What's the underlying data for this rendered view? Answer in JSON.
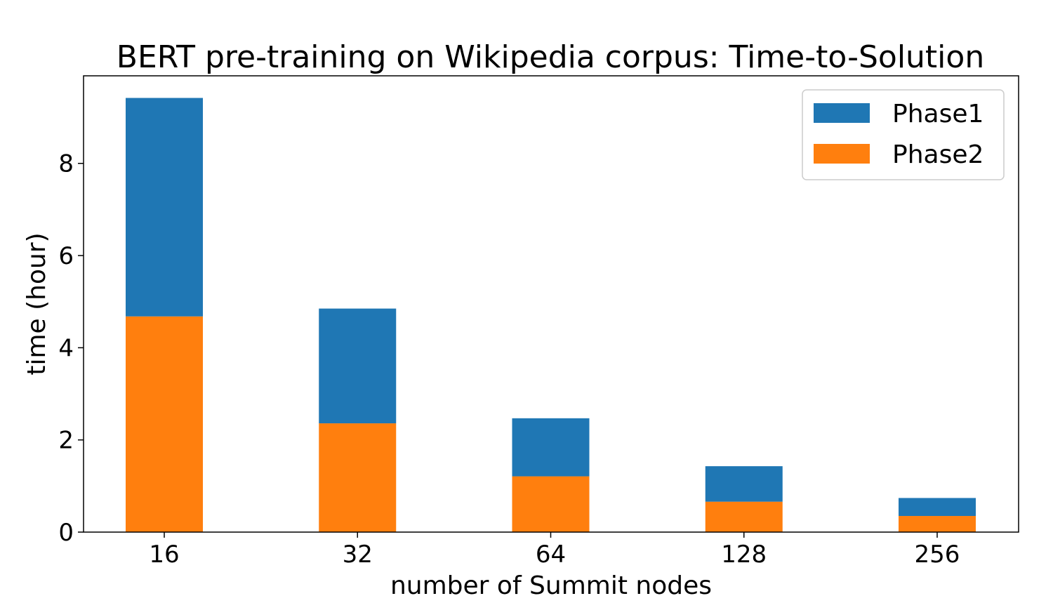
{
  "chart_data": {
    "type": "bar",
    "stacked": true,
    "title": "BERT pre-training on Wikipedia corpus: Time-to-Solution",
    "xlabel": "number of Summit nodes",
    "ylabel": "time (hour)",
    "categories": [
      "16",
      "32",
      "64",
      "128",
      "256"
    ],
    "ylim": [
      0,
      9.9
    ],
    "yticks": [
      0,
      2,
      4,
      6,
      8
    ],
    "grid": false,
    "legend": "top-right",
    "series": [
      {
        "name": "Phase2",
        "color": "#ff7f0e",
        "values": [
          4.68,
          2.36,
          1.21,
          0.66,
          0.35
        ]
      },
      {
        "name": "Phase1",
        "color": "#1f77b4",
        "values": [
          4.74,
          2.49,
          1.26,
          0.77,
          0.39
        ]
      }
    ],
    "legend_order": [
      "Phase1",
      "Phase2"
    ]
  }
}
